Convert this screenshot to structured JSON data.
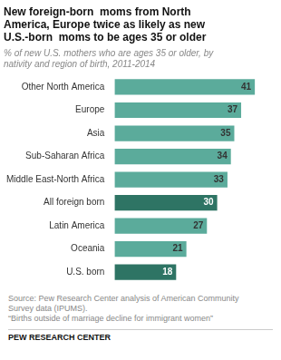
{
  "chart_data": {
    "type": "bar",
    "orientation": "horizontal",
    "title": [
      "New foreign-born  moms from North",
      "America, Europe twice as likely as new",
      "U.S.-born  moms to be ages 35 or older"
    ],
    "subtitle": "% of new U.S. mothers who are ages 35 or older, by\nnativity and region of birth, 2011-2014",
    "categories": [
      "Other North America",
      "Europe",
      "Asia",
      "Sub-Saharan Africa",
      "Middle East-North Africa",
      "All foreign born",
      "Latin America",
      "Oceania",
      "U.S. born"
    ],
    "values": [
      41,
      37,
      35,
      34,
      33,
      30,
      27,
      21,
      18
    ],
    "colors": [
      "#5bab9b",
      "#5bab9b",
      "#5bab9b",
      "#5bab9b",
      "#5bab9b",
      "#2e7464",
      "#5bab9b",
      "#5bab9b",
      "#2e7464"
    ],
    "xlim": [
      0,
      46
    ],
    "data_labels": true,
    "tick_labels": "y",
    "grid": false,
    "source": [
      "Source: Pew Research Center analysis of American Community",
      "Survey data (IPUMS).",
      "“Births outside of marriage decline for immigrant women”"
    ],
    "footer": "PEW RESEARCH CENTER"
  }
}
